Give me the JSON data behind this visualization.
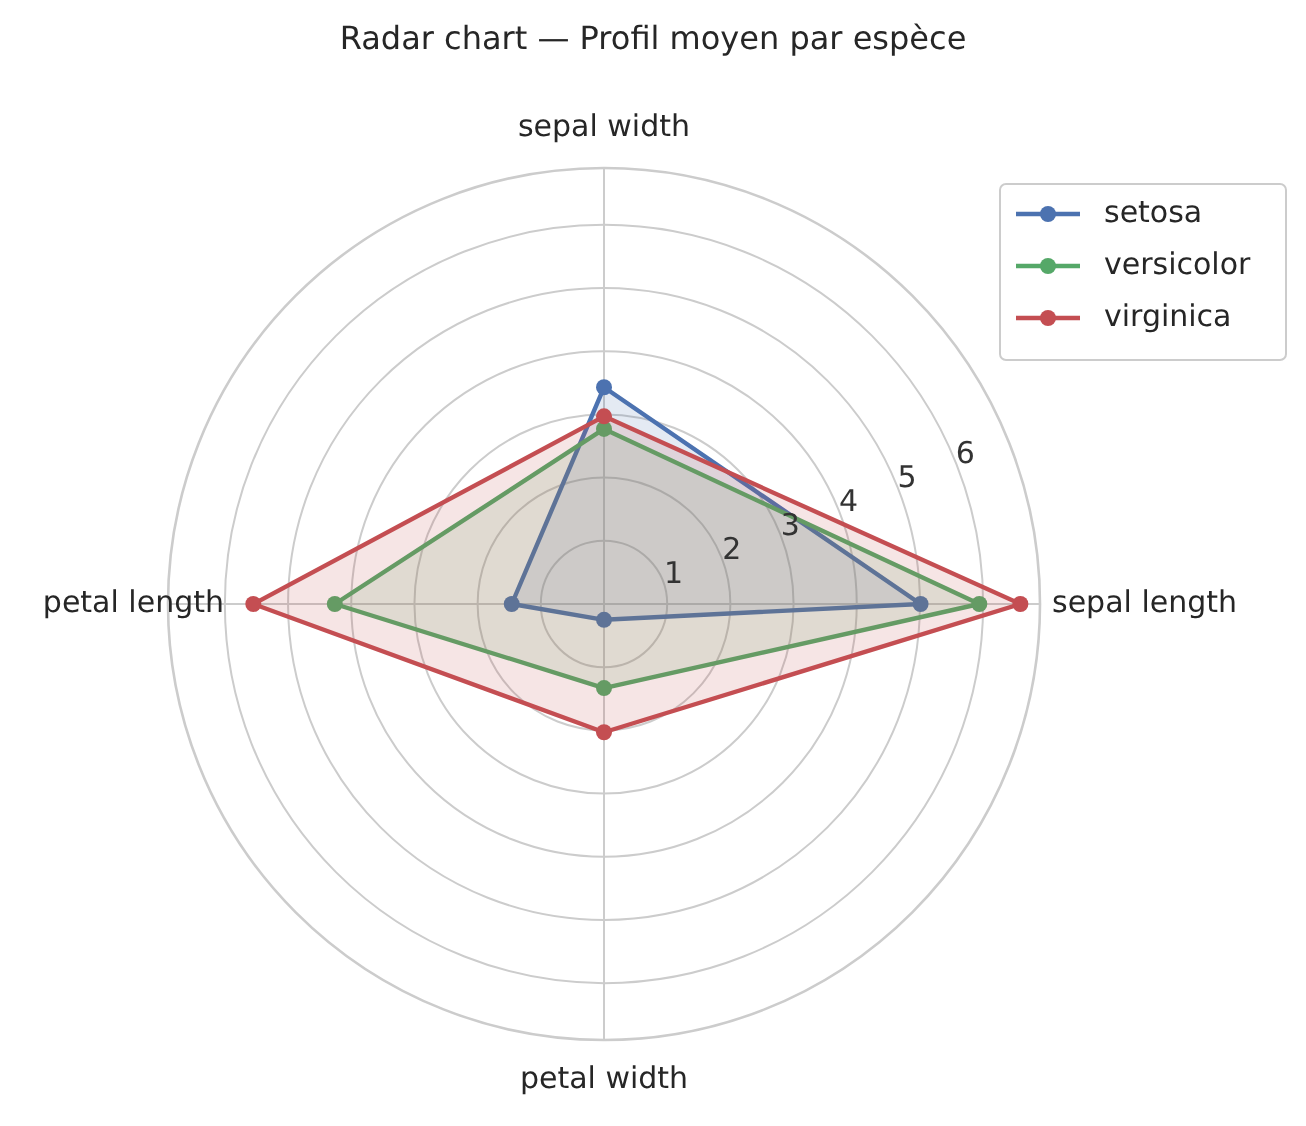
{
  "chart_data": {
    "type": "radar",
    "title": "Radar chart — Profil moyen par espèce",
    "categories": [
      "sepal width",
      "sepal length",
      "petal width",
      "petal length"
    ],
    "series": [
      {
        "name": "setosa",
        "color": "#4c72b0",
        "values": [
          3.43,
          5.01,
          0.25,
          1.46
        ]
      },
      {
        "name": "versicolor",
        "color": "#55a868",
        "values": [
          2.77,
          5.94,
          1.33,
          4.26
        ]
      },
      {
        "name": "virginica",
        "color": "#c44e52",
        "values": [
          2.97,
          6.59,
          2.03,
          5.55
        ]
      }
    ],
    "ylim": [
      0,
      6.9
    ],
    "yticks": [
      1,
      2,
      3,
      4,
      5,
      6
    ],
    "grid": true,
    "legend": "top right",
    "marker": "circle",
    "line_style": "solid"
  }
}
